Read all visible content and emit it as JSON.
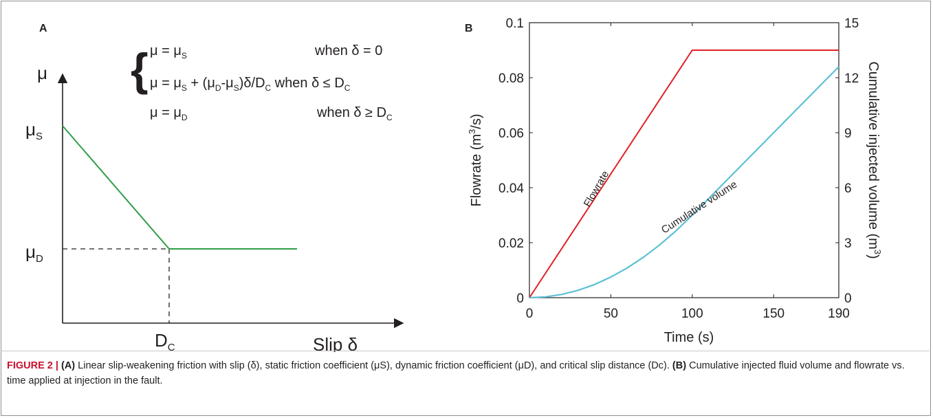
{
  "figure": {
    "caption": {
      "label": "FIGURE 2 |",
      "a_tag": "(A)",
      "a_text": " Linear slip-weakening friction with slip (δ), static friction coefficient (μS), dynamic friction coefficient (μD), and critical slip distance (Dc). ",
      "b_tag": "(B)",
      "b_text": " Cumulative injected fluid volume and flowrate vs. time applied at injection in the fault."
    }
  },
  "chart_data": [
    {
      "panel": "A",
      "type": "line",
      "panel_label": "A",
      "y_axis_label": "μ",
      "x_axis_label": "Slip δ",
      "y_markers": {
        "mu_s": "μS",
        "mu_d": "μD"
      },
      "x_marker": "DC",
      "equations": [
        {
          "lhs": "μ = μS",
          "condition": "when δ = 0"
        },
        {
          "lhs": "μ = μS + (μD-μS)δ/DC",
          "condition": "when δ ≤ DC"
        },
        {
          "lhs": "μ = μD",
          "condition": "when δ ≥ DC"
        }
      ],
      "series": [
        {
          "color": "#2e9e48",
          "x": [
            0,
            1,
            2.2
          ],
          "y": [
            1,
            0.45,
            0.45
          ]
        }
      ],
      "xlim": [
        0,
        2.2
      ],
      "ylim": [
        0,
        1.45
      ]
    },
    {
      "panel": "B",
      "type": "line",
      "panel_label": "B",
      "xlabel": "Time (s)",
      "ylabel_left": "Flowrate (m3/s)",
      "ylabel_right": "Cumulative injected volume (m3)",
      "x_ticks": [
        0,
        50,
        100,
        150,
        190
      ],
      "y_left_ticks": [
        0,
        0.02,
        0.04,
        0.06,
        0.08,
        0.1
      ],
      "y_right_ticks": [
        0,
        3,
        6,
        9,
        12,
        15
      ],
      "xlim": [
        0,
        190
      ],
      "ylim_left": [
        0,
        0.1
      ],
      "ylim_right": [
        0,
        15
      ],
      "annotations": [
        "Flowrate",
        "Cumulative volume"
      ],
      "series": [
        {
          "axis": "left",
          "color": "#e02026",
          "x": [
            0,
            100,
            190
          ],
          "y": [
            0,
            0.09,
            0.09
          ]
        },
        {
          "axis": "right",
          "color": "#5bc0d4",
          "x": [
            0,
            10,
            20,
            30,
            40,
            50,
            60,
            70,
            80,
            90,
            100,
            110,
            120,
            130,
            140,
            150,
            160,
            170,
            180,
            190
          ],
          "y": [
            0,
            0.045,
            0.18,
            0.405,
            0.72,
            1.125,
            1.62,
            2.205,
            2.88,
            3.645,
            4.5,
            5.4,
            6.3,
            7.2,
            8.1,
            9.0,
            9.9,
            10.8,
            11.7,
            12.6
          ]
        }
      ],
      "grid": false,
      "legend": "none"
    }
  ]
}
